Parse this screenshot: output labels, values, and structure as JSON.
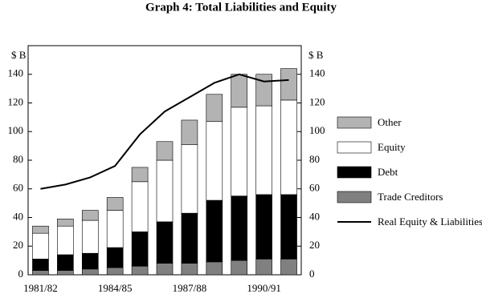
{
  "chart_data": {
    "type": "bar",
    "stacked": true,
    "title": "Graph 4: Total Liabilities and Equity",
    "y_label": "$ B",
    "categories": [
      "1981/82",
      null,
      null,
      "1984/85",
      null,
      null,
      "1987/88",
      null,
      null,
      "1990/91",
      null
    ],
    "series": [
      {
        "name": "Trade Creditors",
        "color": "#808080",
        "values": [
          3,
          3,
          4,
          5,
          6,
          8,
          8,
          9,
          10,
          11,
          11
        ]
      },
      {
        "name": "Debt",
        "color": "#000000",
        "values": [
          8,
          11,
          11,
          14,
          24,
          29,
          35,
          43,
          45,
          45,
          45
        ]
      },
      {
        "name": "Equity",
        "color": "#ffffff",
        "values": [
          18,
          20,
          23,
          26,
          35,
          43,
          48,
          55,
          62,
          62,
          66
        ]
      },
      {
        "name": "Other",
        "color": "#b3b3b3",
        "values": [
          5,
          5,
          7,
          9,
          10,
          13,
          17,
          19,
          23,
          22,
          22
        ]
      },
      {
        "name": "Real Equity & Liabilities",
        "type": "line",
        "color": "#000000",
        "values": [
          60,
          63,
          68,
          76,
          98,
          114,
          124,
          134,
          140,
          135,
          136
        ]
      }
    ],
    "ylim": [
      0,
      160
    ],
    "yticks": [
      0,
      20,
      40,
      60,
      80,
      100,
      120,
      140
    ],
    "y2lim": [
      0,
      160
    ],
    "y2ticks": [
      0,
      20,
      40,
      60,
      80,
      100,
      120,
      140
    ],
    "legend": "right",
    "grid": false
  }
}
